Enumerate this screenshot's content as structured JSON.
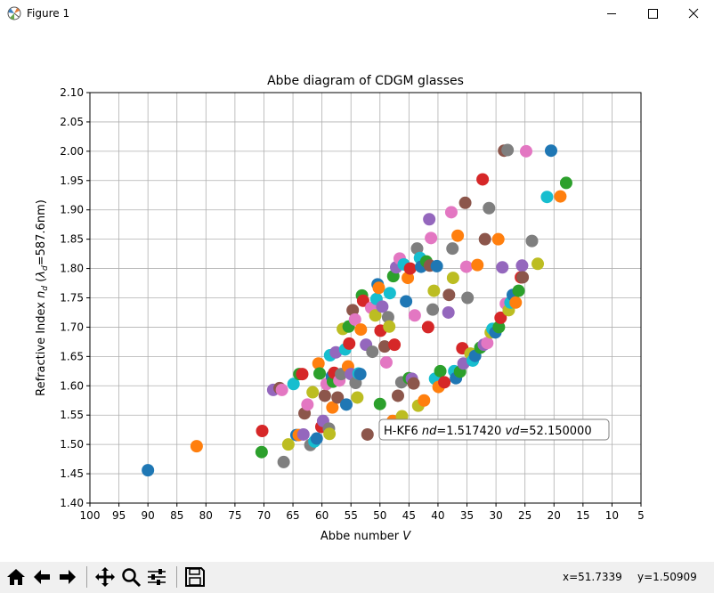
{
  "window": {
    "title": "Figure 1"
  },
  "toolbar": {
    "buttons": [
      {
        "name": "home-icon"
      },
      {
        "name": "back-icon"
      },
      {
        "name": "forward-icon"
      },
      {
        "name": "pan-icon"
      },
      {
        "name": "zoom-icon"
      },
      {
        "name": "configure-subplots-icon"
      },
      {
        "name": "save-icon"
      }
    ],
    "coord_x": "x=51.7339",
    "coord_y": "y=1.50909"
  },
  "chart_data": {
    "type": "scatter",
    "title": "Abbe diagram of CDGM glasses",
    "xlabel": "Abbe number V",
    "ylabel": "Refractive Index n_d (λ_d=587.6nm)",
    "xlim": [
      100,
      5
    ],
    "ylim": [
      1.4,
      2.1
    ],
    "x_ticks": [
      "100",
      "95",
      "90",
      "85",
      "80",
      "75",
      "70",
      "65",
      "60",
      "55",
      "50",
      "45",
      "40",
      "35",
      "30",
      "25",
      "20",
      "15",
      "10",
      "5"
    ],
    "y_ticks": [
      "1.40",
      "1.45",
      "1.50",
      "1.55",
      "1.60",
      "1.65",
      "1.70",
      "1.75",
      "1.80",
      "1.85",
      "1.90",
      "1.95",
      "2.00",
      "2.05",
      "2.10"
    ],
    "grid": true,
    "marker_colors": [
      "#1f77b4",
      "#ff7f0e",
      "#2ca02c",
      "#d62728",
      "#9467bd",
      "#8c564b",
      "#e377c2",
      "#7f7f7f",
      "#bcbd22",
      "#17becf"
    ],
    "annotation": {
      "prefix": "H-KF6 ",
      "nd_label": "nd",
      "nd_value": "=1.517420 ",
      "vd_label": "vd",
      "vd_value": "=52.150000",
      "x": 52.15,
      "y": 1.51742
    },
    "points": [
      [
        90.0,
        1.456
      ],
      [
        81.6,
        1.497
      ],
      [
        70.4,
        1.487
      ],
      [
        70.3,
        1.523
      ],
      [
        68.4,
        1.593
      ],
      [
        67.3,
        1.596
      ],
      [
        66.9,
        1.593
      ],
      [
        66.6,
        1.47
      ],
      [
        65.8,
        1.5
      ],
      [
        64.9,
        1.603
      ],
      [
        64.4,
        1.516
      ],
      [
        64.0,
        1.516
      ],
      [
        63.9,
        1.62
      ],
      [
        63.4,
        1.62
      ],
      [
        63.2,
        1.517
      ],
      [
        63.0,
        1.553
      ],
      [
        62.5,
        1.568
      ],
      [
        62.0,
        1.499
      ],
      [
        61.6,
        1.589
      ],
      [
        61.3,
        1.505
      ],
      [
        60.9,
        1.51
      ],
      [
        60.6,
        1.638
      ],
      [
        60.4,
        1.621
      ],
      [
        60.1,
        1.53
      ],
      [
        59.8,
        1.54
      ],
      [
        59.5,
        1.583
      ],
      [
        59.2,
        1.603
      ],
      [
        58.8,
        1.527
      ],
      [
        58.7,
        1.518
      ],
      [
        58.6,
        1.652
      ],
      [
        58.3,
        1.616
      ],
      [
        58.2,
        1.563
      ],
      [
        58.1,
        1.607
      ],
      [
        57.9,
        1.622
      ],
      [
        57.6,
        1.657
      ],
      [
        57.3,
        1.58
      ],
      [
        57.0,
        1.609
      ],
      [
        56.7,
        1.62
      ],
      [
        56.4,
        1.697
      ],
      [
        56.0,
        1.662
      ],
      [
        55.8,
        1.568
      ],
      [
        55.5,
        1.633
      ],
      [
        55.4,
        1.701
      ],
      [
        55.3,
        1.672
      ],
      [
        55.0,
        1.62
      ],
      [
        54.7,
        1.729
      ],
      [
        54.3,
        1.713
      ],
      [
        54.2,
        1.605
      ],
      [
        53.9,
        1.58
      ],
      [
        53.7,
        1.621
      ],
      [
        53.4,
        1.62
      ],
      [
        53.3,
        1.696
      ],
      [
        53.1,
        1.754
      ],
      [
        52.9,
        1.745
      ],
      [
        52.4,
        1.67
      ],
      [
        52.15,
        1.517
      ],
      [
        51.5,
        1.733
      ],
      [
        51.3,
        1.658
      ],
      [
        50.8,
        1.72
      ],
      [
        50.6,
        1.748
      ],
      [
        50.4,
        1.773
      ],
      [
        50.2,
        1.767
      ],
      [
        50.0,
        1.569
      ],
      [
        49.9,
        1.694
      ],
      [
        49.6,
        1.735
      ],
      [
        49.2,
        1.667
      ],
      [
        48.9,
        1.64
      ],
      [
        48.6,
        1.717
      ],
      [
        48.4,
        1.701
      ],
      [
        48.3,
        1.758
      ],
      [
        48.0,
        1.53
      ],
      [
        47.8,
        1.54
      ],
      [
        47.7,
        1.787
      ],
      [
        47.5,
        1.67
      ],
      [
        47.2,
        1.802
      ],
      [
        46.9,
        1.583
      ],
      [
        46.6,
        1.817
      ],
      [
        46.3,
        1.606
      ],
      [
        46.2,
        1.548
      ],
      [
        45.9,
        1.807
      ],
      [
        45.5,
        1.744
      ],
      [
        45.2,
        1.784
      ],
      [
        45.0,
        1.613
      ],
      [
        44.8,
        1.8
      ],
      [
        44.5,
        1.612
      ],
      [
        44.2,
        1.604
      ],
      [
        44.0,
        1.72
      ],
      [
        43.6,
        1.834
      ],
      [
        43.4,
        1.566
      ],
      [
        43.1,
        1.818
      ],
      [
        42.9,
        1.803
      ],
      [
        42.4,
        1.575
      ],
      [
        42.0,
        1.812
      ],
      [
        41.7,
        1.7
      ],
      [
        41.5,
        1.884
      ],
      [
        41.4,
        1.805
      ],
      [
        41.2,
        1.852
      ],
      [
        40.9,
        1.73
      ],
      [
        40.7,
        1.762
      ],
      [
        40.5,
        1.612
      ],
      [
        40.2,
        1.804
      ],
      [
        39.9,
        1.598
      ],
      [
        39.6,
        1.625
      ],
      [
        38.9,
        1.606
      ],
      [
        38.2,
        1.725
      ],
      [
        38.1,
        1.755
      ],
      [
        37.7,
        1.896
      ],
      [
        37.5,
        1.834
      ],
      [
        37.4,
        1.784
      ],
      [
        37.2,
        1.625
      ],
      [
        36.9,
        1.613
      ],
      [
        36.6,
        1.856
      ],
      [
        36.2,
        1.624
      ],
      [
        35.8,
        1.664
      ],
      [
        35.6,
        1.638
      ],
      [
        35.3,
        1.912
      ],
      [
        35.1,
        1.803
      ],
      [
        34.9,
        1.75
      ],
      [
        34.4,
        1.655
      ],
      [
        34.0,
        1.643
      ],
      [
        33.6,
        1.651
      ],
      [
        33.2,
        1.806
      ],
      [
        32.7,
        1.665
      ],
      [
        32.3,
        1.952
      ],
      [
        32.1,
        1.67
      ],
      [
        31.9,
        1.85
      ],
      [
        31.5,
        1.673
      ],
      [
        31.2,
        1.903
      ],
      [
        30.9,
        1.691
      ],
      [
        30.6,
        1.697
      ],
      [
        30.1,
        1.691
      ],
      [
        29.6,
        1.85
      ],
      [
        29.5,
        1.7
      ],
      [
        29.2,
        1.716
      ],
      [
        28.9,
        1.802
      ],
      [
        28.6,
        2.001
      ],
      [
        28.3,
        1.74
      ],
      [
        28.0,
        2.002
      ],
      [
        27.8,
        1.729
      ],
      [
        27.5,
        1.742
      ],
      [
        27.1,
        1.755
      ],
      [
        26.6,
        1.742
      ],
      [
        26.1,
        1.762
      ],
      [
        25.7,
        1.785
      ],
      [
        25.5,
        1.805
      ],
      [
        25.4,
        1.785
      ],
      [
        24.8,
        2.0
      ],
      [
        23.8,
        1.847
      ],
      [
        22.8,
        1.808
      ],
      [
        21.2,
        1.922
      ],
      [
        20.5,
        2.001
      ],
      [
        18.9,
        1.923
      ],
      [
        17.9,
        1.946
      ]
    ]
  }
}
